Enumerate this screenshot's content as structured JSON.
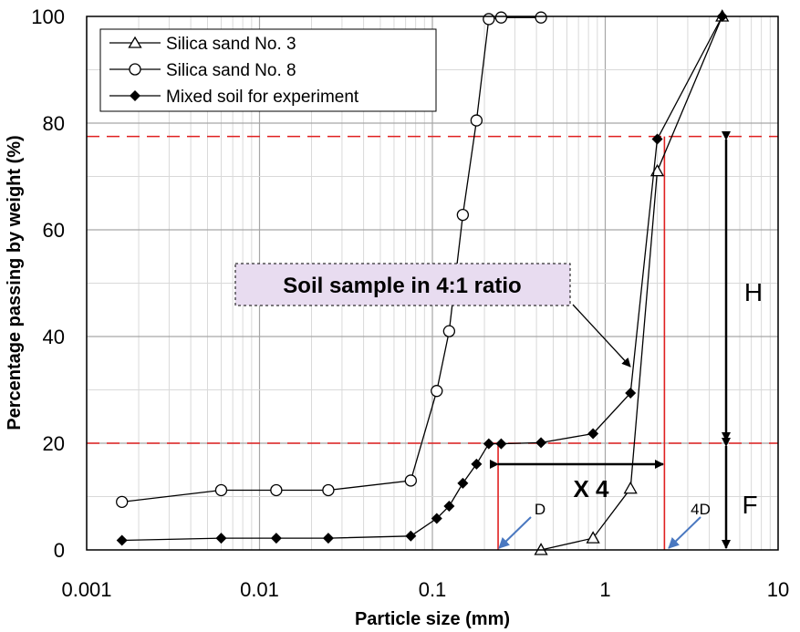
{
  "chart_data": {
    "type": "scatter",
    "title": "",
    "xlabel": "Particle size (mm)",
    "ylabel": "Percentage passing by weight (%)",
    "xscale": "log",
    "xlim": [
      0.001,
      10
    ],
    "ylim": [
      0,
      100
    ],
    "x_ticks": [
      "0.001",
      "0.01",
      "0.1",
      "1",
      "10"
    ],
    "y_ticks": [
      "0",
      "20",
      "40",
      "60",
      "80",
      "100"
    ],
    "grid": true,
    "legend_position": "top-left",
    "series": [
      {
        "name": "Silica sand No. 3",
        "marker": "triangle",
        "points": [
          [
            0.425,
            0
          ],
          [
            0.85,
            2.2
          ],
          [
            1.4,
            11.5
          ],
          [
            2.0,
            71
          ],
          [
            4.75,
            100
          ]
        ]
      },
      {
        "name": "Silica sand No. 8",
        "marker": "circle",
        "points": [
          [
            0.0016,
            9
          ],
          [
            0.006,
            11.2
          ],
          [
            0.0125,
            11.2
          ],
          [
            0.025,
            11.2
          ],
          [
            0.075,
            13
          ],
          [
            0.106,
            29.8
          ],
          [
            0.125,
            41
          ],
          [
            0.15,
            62.8
          ],
          [
            0.18,
            80.5
          ],
          [
            0.212,
            99.5
          ],
          [
            0.25,
            99.8
          ],
          [
            0.425,
            99.8
          ]
        ]
      },
      {
        "name": "Mixed soil for experiment",
        "marker": "diamond",
        "points": [
          [
            0.0016,
            1.8
          ],
          [
            0.006,
            2.2
          ],
          [
            0.0125,
            2.2
          ],
          [
            0.025,
            2.2
          ],
          [
            0.075,
            2.6
          ],
          [
            0.106,
            5.9
          ],
          [
            0.125,
            8.2
          ],
          [
            0.15,
            12.5
          ],
          [
            0.18,
            16.1
          ],
          [
            0.212,
            19.9
          ],
          [
            0.25,
            19.9
          ],
          [
            0.425,
            20.1
          ],
          [
            0.85,
            21.8
          ],
          [
            1.4,
            29.4
          ],
          [
            2.0,
            77
          ],
          [
            4.75,
            100
          ]
        ]
      }
    ],
    "annotations": {
      "box_label": "Soil sample in 4:1 ratio",
      "ratio_label": "X  4",
      "h_label": "H",
      "f_label": "F",
      "d_label": "D",
      "d4_label": "4D"
    },
    "reference_lines": {
      "upper_y": 77.5,
      "lower_y": 20,
      "d_x": 0.24,
      "d4_x": 2.2
    },
    "colors": {
      "reference": "#e02020",
      "arrow_blue": "#4a78c0",
      "box_fill": "#e8dcf0",
      "grid_major": "#a6a6a6",
      "grid_minor": "#d9d9d9"
    }
  }
}
